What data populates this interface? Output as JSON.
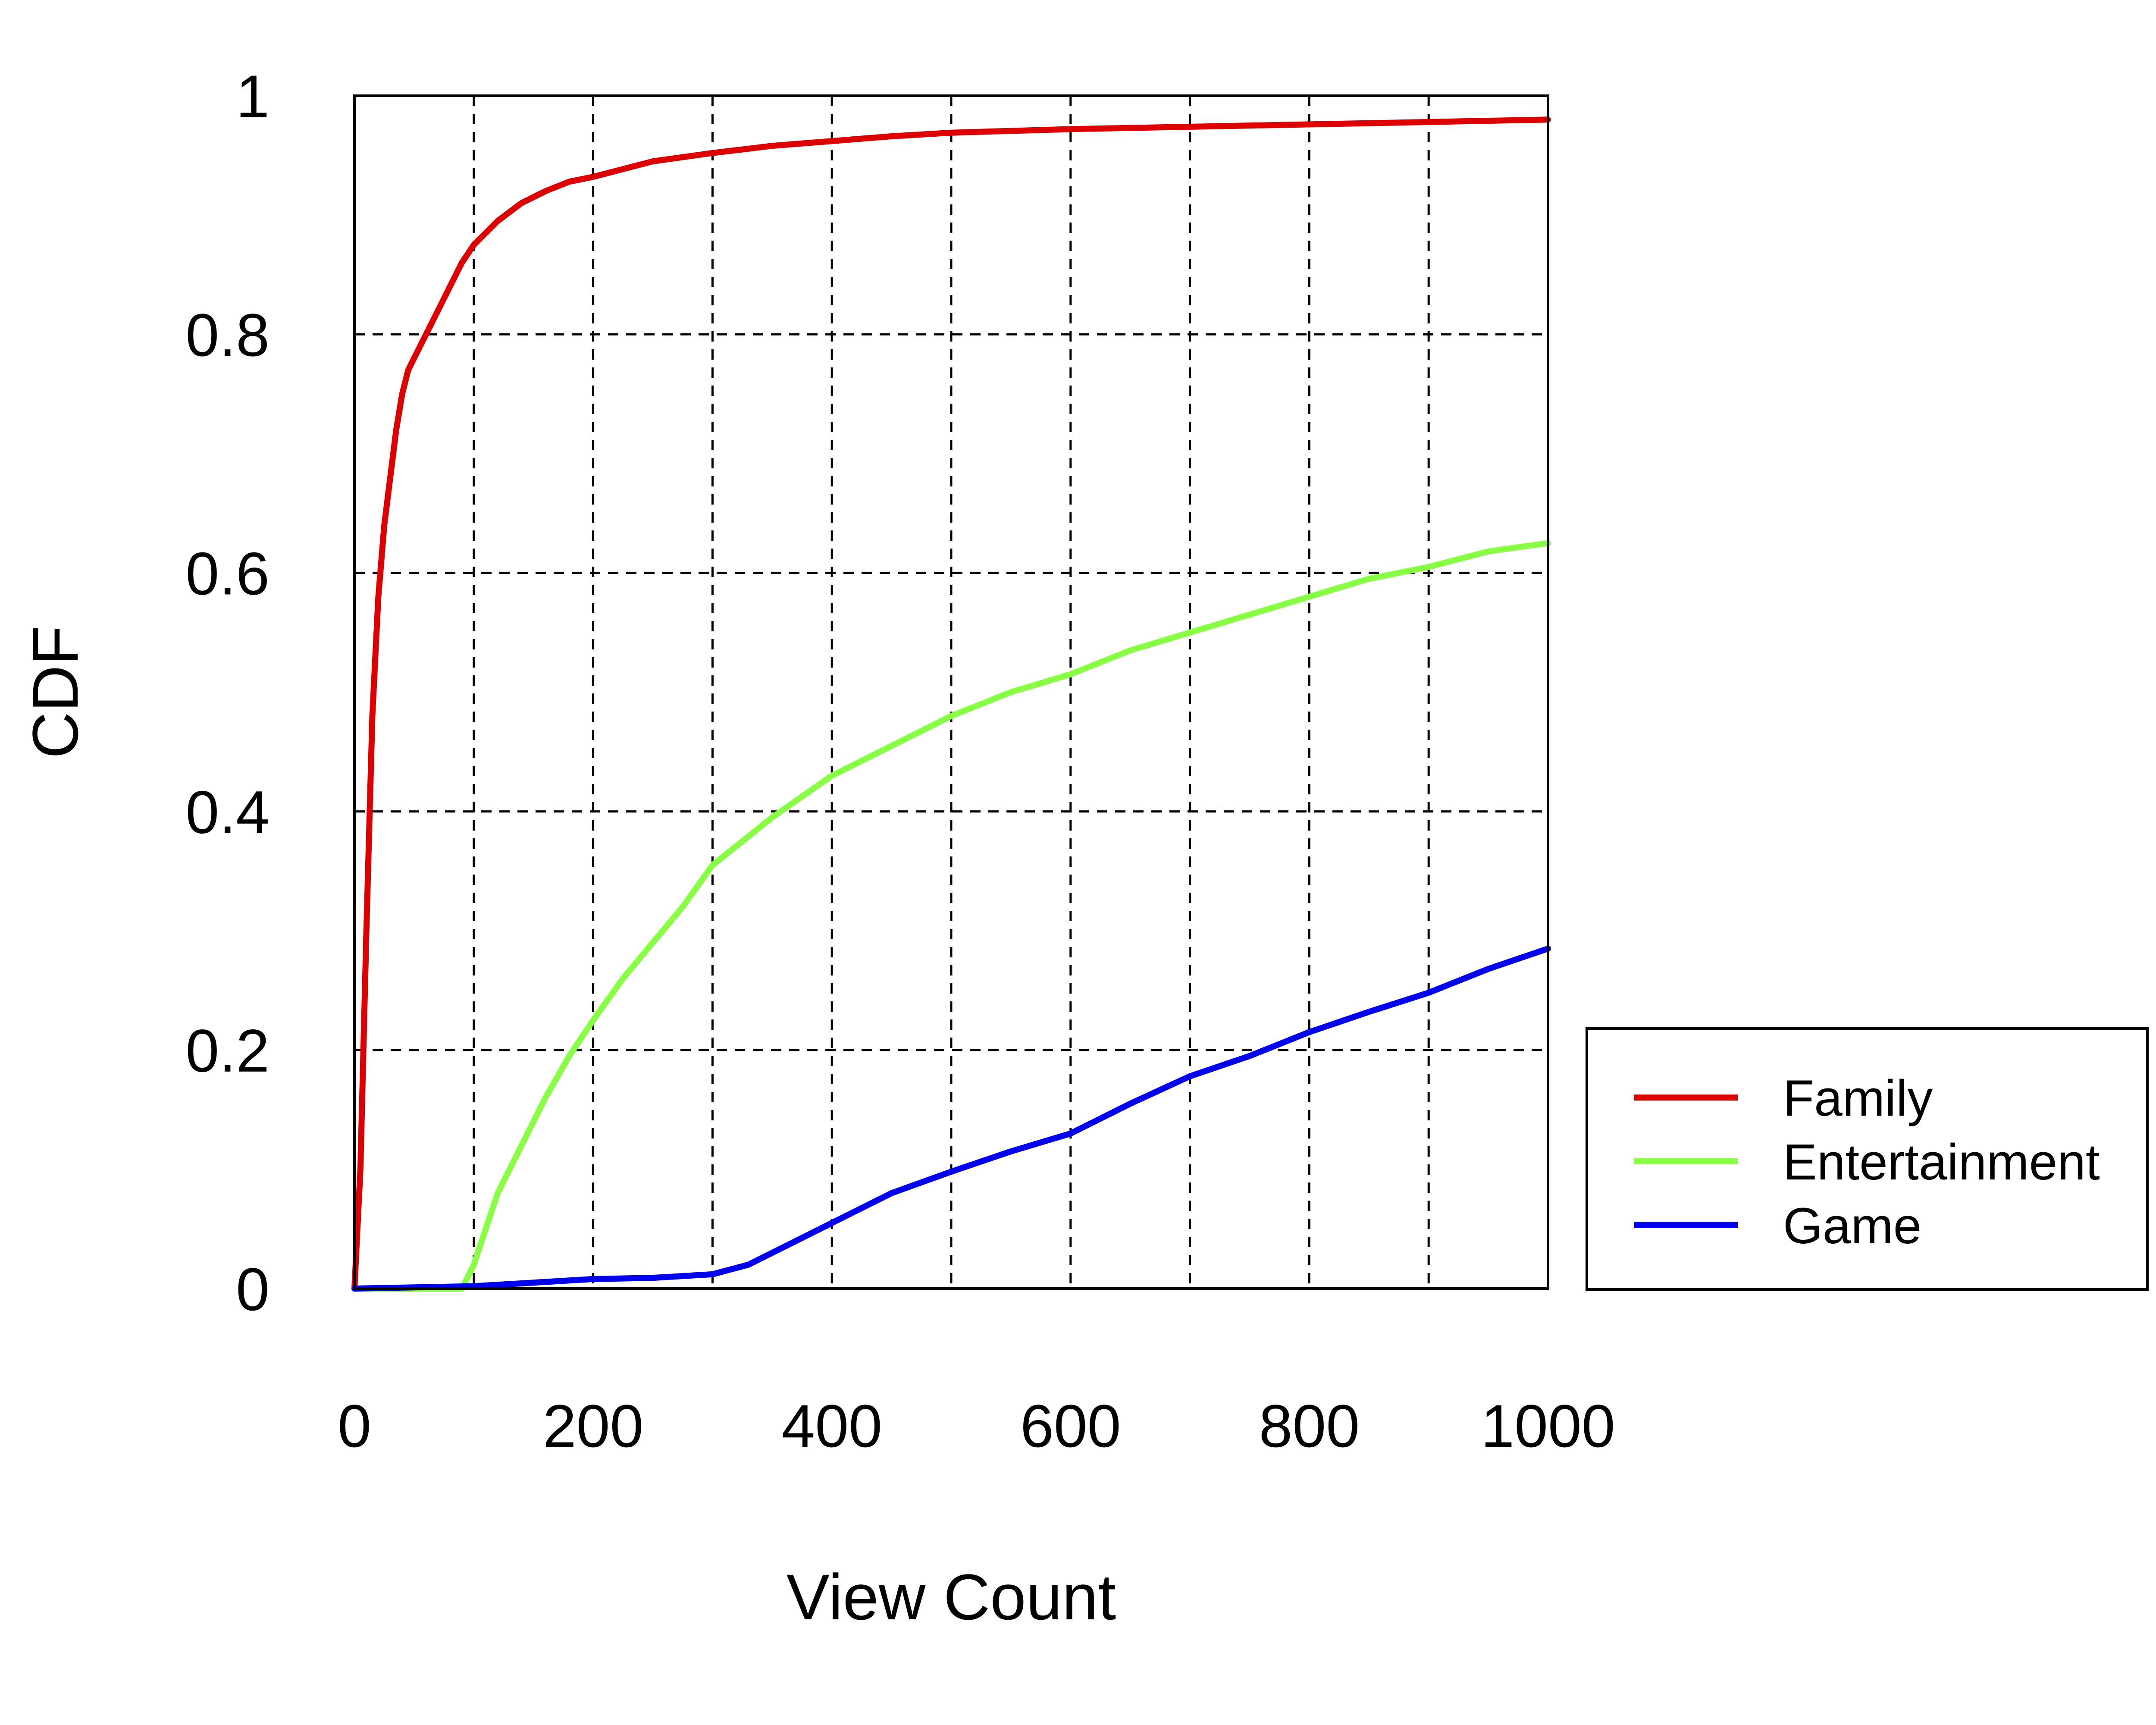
{
  "chart_data": {
    "type": "line",
    "title": "",
    "xlabel": "View Count",
    "ylabel": "CDF",
    "xlim": [
      0,
      1000
    ],
    "ylim": [
      0,
      1
    ],
    "xticks": [
      0,
      200,
      400,
      600,
      800,
      1000
    ],
    "xtick_labels": [
      "0",
      "200",
      "400",
      "600",
      "800",
      "1000"
    ],
    "yticks": [
      0,
      0.2,
      0.4,
      0.6,
      0.8,
      1
    ],
    "ytick_labels": [
      "0",
      "0.2",
      "0.4",
      "0.6",
      "0.8",
      "1"
    ],
    "grid": true,
    "grid_x": [
      100,
      200,
      300,
      400,
      500,
      600,
      700,
      800,
      900
    ],
    "grid_y": [
      0.2,
      0.4,
      0.6,
      0.8
    ],
    "legend_position": "right-bottom-outside",
    "series": [
      {
        "name": "Family",
        "color": "#dd0000",
        "x": [
          0,
          5,
          10,
          15,
          20,
          25,
          30,
          35,
          40,
          45,
          50,
          55,
          60,
          70,
          80,
          90,
          100,
          120,
          140,
          160,
          180,
          200,
          250,
          300,
          350,
          400,
          450,
          500,
          600,
          700,
          800,
          900,
          1000
        ],
        "y": [
          0,
          0.1,
          0.3,
          0.48,
          0.58,
          0.64,
          0.68,
          0.72,
          0.75,
          0.77,
          0.78,
          0.79,
          0.8,
          0.82,
          0.84,
          0.86,
          0.875,
          0.895,
          0.91,
          0.92,
          0.928,
          0.932,
          0.945,
          0.952,
          0.958,
          0.962,
          0.966,
          0.969,
          0.972,
          0.974,
          0.976,
          0.978,
          0.98
        ]
      },
      {
        "name": "Entertainment",
        "color": "#88ff44",
        "x": [
          0,
          90,
          100,
          110,
          120,
          140,
          160,
          180,
          200,
          225,
          250,
          275,
          300,
          350,
          400,
          450,
          500,
          550,
          600,
          650,
          700,
          750,
          800,
          850,
          900,
          950,
          1000
        ],
        "y": [
          0,
          0,
          0.02,
          0.05,
          0.08,
          0.12,
          0.16,
          0.195,
          0.225,
          0.26,
          0.29,
          0.32,
          0.355,
          0.395,
          0.43,
          0.455,
          0.48,
          0.5,
          0.515,
          0.535,
          0.55,
          0.565,
          0.58,
          0.595,
          0.605,
          0.618,
          0.625
        ]
      },
      {
        "name": "Game",
        "color": "#0000ee",
        "x": [
          0,
          100,
          150,
          200,
          250,
          300,
          330,
          360,
          400,
          450,
          500,
          550,
          600,
          650,
          700,
          750,
          800,
          850,
          900,
          950,
          1000
        ],
        "y": [
          0,
          0.002,
          0.005,
          0.008,
          0.009,
          0.012,
          0.02,
          0.035,
          0.055,
          0.08,
          0.098,
          0.115,
          0.13,
          0.155,
          0.178,
          0.195,
          0.215,
          0.232,
          0.248,
          0.268,
          0.285
        ]
      }
    ]
  }
}
